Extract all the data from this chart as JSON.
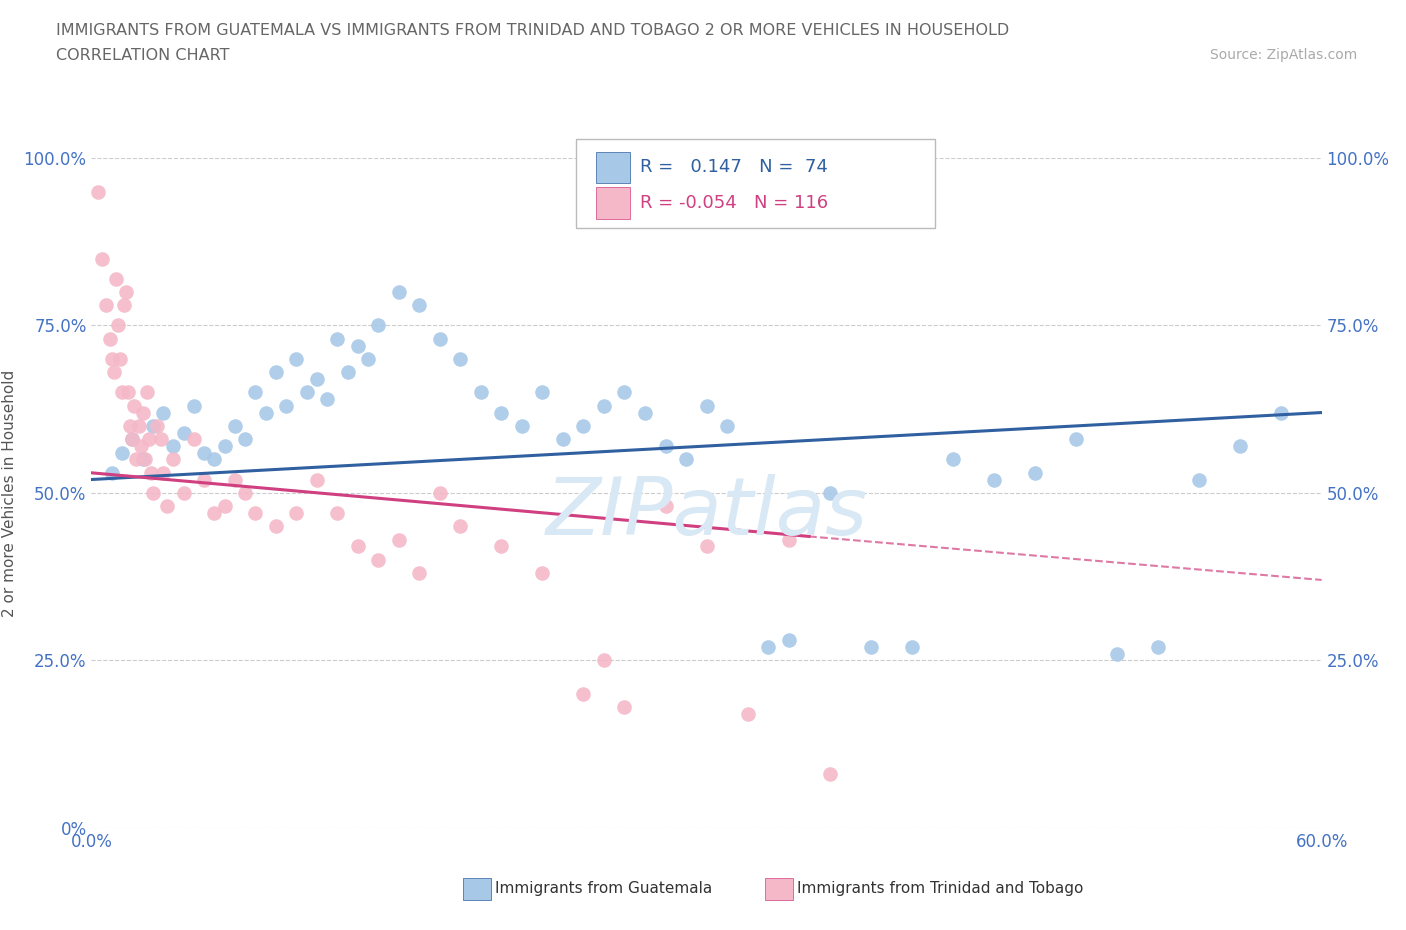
{
  "title_line1": "IMMIGRANTS FROM GUATEMALA VS IMMIGRANTS FROM TRINIDAD AND TOBAGO 2 OR MORE VEHICLES IN HOUSEHOLD",
  "title_line2": "CORRELATION CHART",
  "source_text": "Source: ZipAtlas.com",
  "legend_label_blue": "Immigrants from Guatemala",
  "legend_label_pink": "Immigrants from Trinidad and Tobago",
  "ylabel_label": "2 or more Vehicles in Household",
  "blue_color": "#a8c8e8",
  "pink_color": "#f4b8c8",
  "trend_blue_color": "#3060a0",
  "trend_pink_color": "#d04080",
  "title_color": "#666666",
  "axis_label_color": "#4472c4",
  "source_color": "#aaaaaa",
  "watermark_color": "#d8e8f4",
  "blue_x": [
    1.0,
    1.5,
    2.0,
    2.5,
    3.0,
    3.5,
    4.0,
    4.5,
    5.0,
    5.5,
    6.0,
    6.5,
    7.0,
    7.5,
    8.0,
    8.5,
    9.0,
    9.5,
    10.0,
    10.5,
    11.0,
    11.5,
    12.0,
    12.5,
    13.0,
    13.5,
    14.0,
    15.0,
    16.0,
    17.0,
    18.0,
    19.0,
    20.0,
    21.0,
    22.0,
    23.0,
    24.0,
    25.0,
    26.0,
    27.0,
    28.0,
    29.0,
    30.0,
    31.0,
    33.0,
    34.0,
    36.0,
    38.0,
    40.0,
    42.0,
    44.0,
    46.0,
    48.0,
    50.0,
    52.0,
    54.0,
    56.0,
    58.0
  ],
  "blue_y": [
    53,
    56,
    58,
    55,
    60,
    62,
    57,
    59,
    63,
    56,
    55,
    57,
    60,
    58,
    65,
    62,
    68,
    63,
    70,
    65,
    67,
    64,
    73,
    68,
    72,
    70,
    75,
    80,
    78,
    73,
    70,
    65,
    62,
    60,
    65,
    58,
    60,
    63,
    65,
    62,
    57,
    55,
    63,
    60,
    27,
    28,
    50,
    27,
    27,
    55,
    52,
    53,
    58,
    26,
    27,
    52,
    57,
    62
  ],
  "pink_x": [
    0.3,
    0.5,
    0.7,
    0.9,
    1.0,
    1.1,
    1.2,
    1.3,
    1.4,
    1.5,
    1.6,
    1.7,
    1.8,
    1.9,
    2.0,
    2.1,
    2.2,
    2.3,
    2.4,
    2.5,
    2.6,
    2.7,
    2.8,
    2.9,
    3.0,
    3.2,
    3.4,
    3.5,
    3.7,
    4.0,
    4.5,
    5.0,
    5.5,
    6.0,
    6.5,
    7.0,
    7.5,
    8.0,
    9.0,
    10.0,
    11.0,
    12.0,
    13.0,
    14.0,
    15.0,
    16.0,
    17.0,
    18.0,
    20.0,
    22.0,
    24.0,
    25.0,
    26.0,
    28.0,
    30.0,
    32.0,
    34.0,
    36.0
  ],
  "pink_y": [
    95,
    85,
    78,
    73,
    70,
    68,
    82,
    75,
    70,
    65,
    78,
    80,
    65,
    60,
    58,
    63,
    55,
    60,
    57,
    62,
    55,
    65,
    58,
    53,
    50,
    60,
    58,
    53,
    48,
    55,
    50,
    58,
    52,
    47,
    48,
    52,
    50,
    47,
    45,
    47,
    52,
    47,
    42,
    40,
    43,
    38,
    50,
    45,
    42,
    38,
    20,
    25,
    18,
    48,
    42,
    17,
    43,
    8
  ],
  "xlim": [
    0,
    60
  ],
  "ylim": [
    0,
    100
  ],
  "yticks": [
    0,
    25,
    50,
    75,
    100
  ],
  "ytick_labels_left": [
    "0%",
    "25.0%",
    "50.0%",
    "75.0%",
    "100.0%"
  ],
  "ytick_labels_right": [
    "",
    "25.0%",
    "50.0%",
    "75.0%",
    "100.0%"
  ],
  "xtick_labels": [
    "0.0%",
    "",
    "",
    "",
    "",
    "",
    "",
    "",
    "",
    "",
    "60.0%"
  ],
  "grid_color": "#cccccc",
  "background_color": "#ffffff",
  "blue_trend_start_x": 0,
  "blue_trend_end_x": 60,
  "pink_solid_end_x": 35,
  "pink_dashed_end_x": 60
}
